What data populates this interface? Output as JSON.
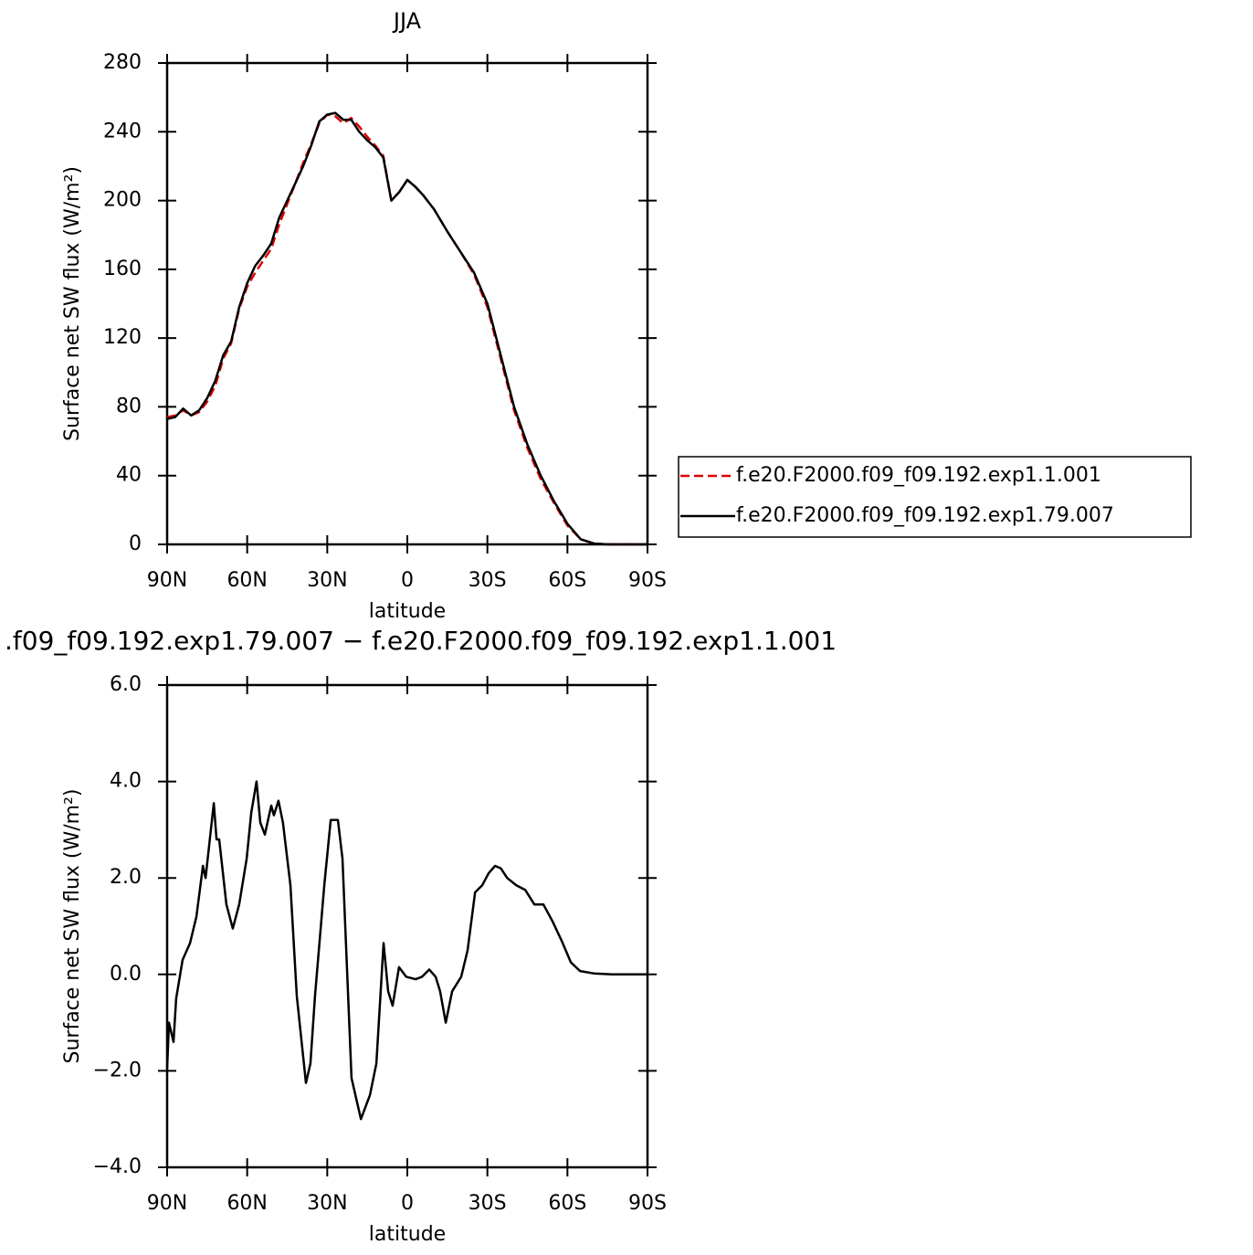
{
  "chart_data": [
    {
      "type": "line",
      "title": "JJA",
      "xlabel": "latitude",
      "ylabel": "Surface net SW flux (W/m²)",
      "x": [
        90,
        87,
        84,
        81,
        78,
        75,
        72,
        69,
        66,
        63,
        60,
        57,
        54,
        51,
        48,
        45,
        42,
        39,
        36,
        33,
        30,
        27,
        24,
        21,
        18,
        15,
        12,
        9,
        6,
        3,
        0,
        -3,
        -6,
        -10,
        -15,
        -20,
        -25,
        -30,
        -35,
        -40,
        -45,
        -50,
        -55,
        -60,
        -65,
        -70,
        -75,
        -80,
        -85,
        -90
      ],
      "series": [
        {
          "name": "f.e20.F2000.f09_f09.192.exp1.1.001",
          "color": "#e00000",
          "linestyle": "dashed",
          "values": [
            74,
            75,
            78,
            75,
            77,
            83,
            92,
            108,
            117,
            137,
            150,
            158,
            165,
            172,
            186,
            198,
            210,
            222,
            233,
            245,
            250,
            249,
            245,
            248,
            243,
            237,
            232,
            226,
            200,
            205,
            212,
            208,
            203,
            195,
            182,
            170,
            157,
            138,
            108,
            78,
            56,
            38,
            24,
            11,
            3,
            0.5,
            0,
            0,
            0,
            0
          ]
        },
        {
          "name": "f.e20.F2000.f09_f09.192.exp1.79.007",
          "color": "#000000",
          "linestyle": "solid",
          "values": [
            73,
            74,
            79,
            75,
            78,
            85,
            95,
            110,
            118,
            138,
            152,
            162,
            168,
            175,
            190,
            200,
            210,
            220,
            232,
            246,
            250,
            251,
            247,
            247,
            240,
            235,
            231,
            225,
            200,
            205,
            212,
            208,
            203,
            195,
            182,
            170,
            158,
            140,
            110,
            80,
            58,
            40,
            25,
            12,
            3,
            0.5,
            0,
            0,
            0,
            0
          ]
        }
      ],
      "xlim": [
        90,
        -90
      ],
      "xticks": [
        {
          "value": 90,
          "label": "90N"
        },
        {
          "value": 60,
          "label": "60N"
        },
        {
          "value": 30,
          "label": "30N"
        },
        0,
        {
          "value": -30,
          "label": "30S"
        },
        {
          "value": -60,
          "label": "60S"
        },
        {
          "value": -90,
          "label": "90S"
        }
      ],
      "ylim": [
        0,
        280
      ],
      "yticks": [
        0,
        40,
        80,
        120,
        160,
        200,
        240,
        280
      ],
      "legend": "right"
    },
    {
      "type": "line",
      "title": ".f09_f09.192.exp1.79.007 − f.e20.F2000.f09_f09.192.exp1.1.001",
      "xlabel": "latitude",
      "ylabel": "Surface net SW flux (W/m²)",
      "x": [
        90,
        89.3,
        87.6,
        86.6,
        84.2,
        81.4,
        79,
        76.6,
        75.6,
        72.5,
        71.5,
        70.5,
        67.8,
        65.4,
        63,
        60.2,
        58.5,
        56.5,
        55.1,
        53.4,
        51,
        50,
        48.3,
        46.6,
        43.8,
        41.4,
        38,
        36.3,
        34.6,
        31.1,
        28.7,
        26,
        24.3,
        20.9,
        17.4,
        14,
        11.6,
        8.9,
        7.2,
        5.5,
        3.1,
        0.4,
        -3.1,
        -5.5,
        -8.2,
        -10.6,
        -12.3,
        -14.4,
        -16.8,
        -20.2,
        -22.6,
        -25.4,
        -28.1,
        -30.5,
        -32.9,
        -35,
        -37.4,
        -40.8,
        -44.2,
        -47.6,
        -51,
        -54.4,
        -57.8,
        -61.3,
        -64.7,
        -69.8,
        -76.7,
        -90
      ],
      "series": [
        {
          "color": "#000000",
          "linestyle": "solid",
          "values": [
            -1.95,
            -1.0,
            -1.4,
            -0.5,
            0.3,
            0.65,
            1.2,
            2.25,
            2.0,
            3.55,
            2.8,
            2.8,
            1.45,
            0.95,
            1.45,
            2.4,
            3.35,
            4.0,
            3.15,
            2.9,
            3.5,
            3.3,
            3.6,
            3.15,
            1.85,
            -0.45,
            -2.25,
            -1.85,
            -0.45,
            1.85,
            3.2,
            3.2,
            2.4,
            -2.15,
            -3.0,
            -2.5,
            -1.85,
            0.65,
            -0.35,
            -0.65,
            0.15,
            -0.05,
            -0.1,
            -0.05,
            0.1,
            -0.05,
            -0.35,
            -1.0,
            -0.35,
            -0.05,
            0.5,
            1.7,
            1.85,
            2.1,
            2.25,
            2.2,
            2.0,
            1.85,
            1.75,
            1.45,
            1.45,
            1.1,
            0.7,
            0.25,
            0.07,
            0.02,
            0,
            0
          ]
        }
      ],
      "xlim": [
        90,
        -90
      ],
      "xticks": [
        {
          "value": 90,
          "label": "90N"
        },
        {
          "value": 60,
          "label": "60N"
        },
        {
          "value": 30,
          "label": "30N"
        },
        0,
        {
          "value": -30,
          "label": "30S"
        },
        {
          "value": -60,
          "label": "60S"
        },
        {
          "value": -90,
          "label": "90S"
        }
      ],
      "ylim": [
        -4,
        6
      ],
      "yticks": [
        {
          "value": -4,
          "label": "−4.0"
        },
        {
          "value": -2,
          "label": "−2.0"
        },
        {
          "value": 0,
          "label": "0.0"
        },
        {
          "value": 2,
          "label": "2.0"
        },
        {
          "value": 4,
          "label": "4.0"
        },
        {
          "value": 6,
          "label": "6.0"
        }
      ]
    }
  ]
}
